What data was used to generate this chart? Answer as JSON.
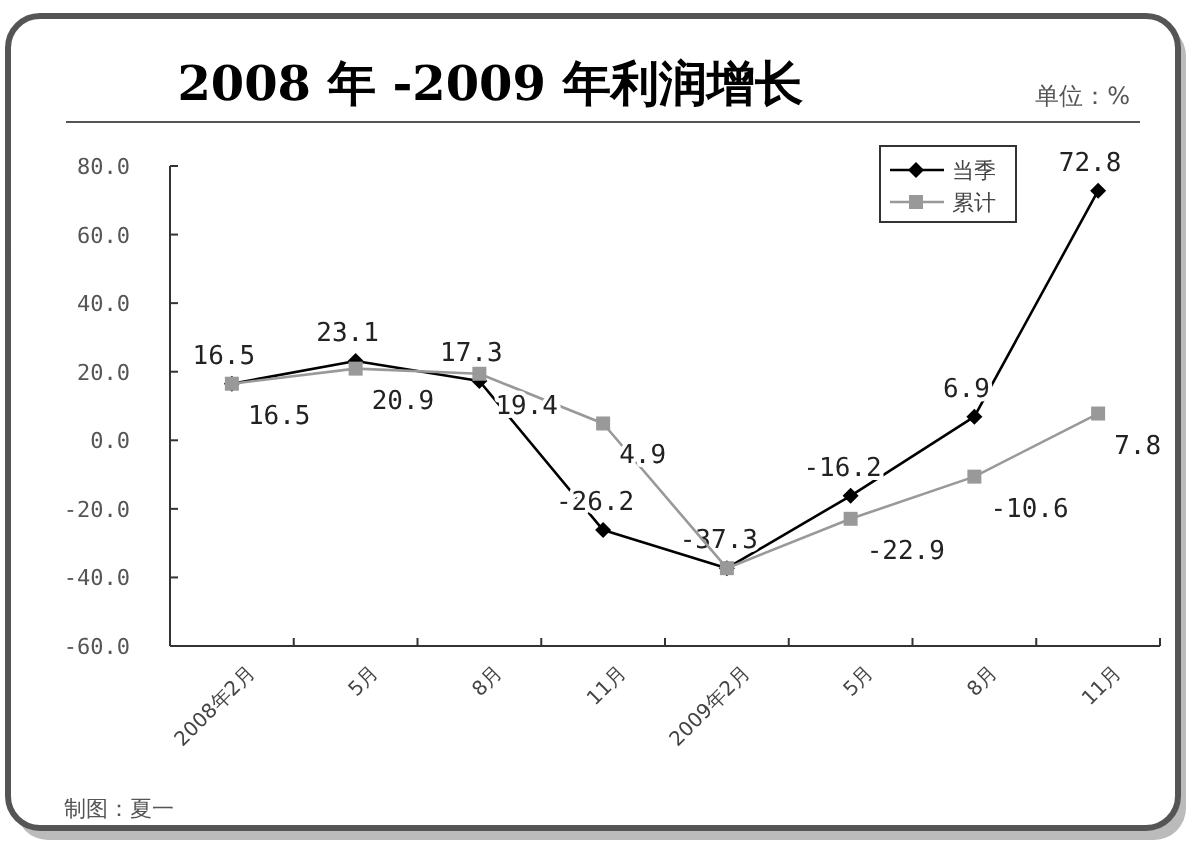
{
  "chart_data": {
    "type": "line",
    "title": "2008 年 -2009 年利润增长",
    "annotations": [
      "单位：%",
      "制图：夏一"
    ],
    "categories": [
      "2008年2月",
      "5月",
      "8月",
      "11月",
      "2009年2月",
      "5月",
      "8月",
      "11月"
    ],
    "series": [
      {
        "name": "当季",
        "color": "#000000",
        "marker": "diamond",
        "values": [
          16.5,
          23.1,
          17.3,
          -26.2,
          -37.3,
          -16.2,
          6.9,
          72.8
        ],
        "value_labels": [
          "16.5",
          "23.1",
          "17.3",
          "-26.2",
          "-37.3",
          "-16.2",
          "6.9",
          "72.8"
        ]
      },
      {
        "name": "累计",
        "color": "#999999",
        "marker": "square",
        "values": [
          16.5,
          20.9,
          19.4,
          4.9,
          -37.3,
          -22.9,
          -10.6,
          7.8
        ],
        "value_labels": [
          "16.5",
          "20.9",
          "19.4",
          "4.9",
          null,
          "-22.9",
          "-10.6",
          "7.8"
        ]
      }
    ],
    "ylim": [
      -60,
      80
    ],
    "yticks": [
      {
        "value": -60,
        "label": "-60.0"
      },
      {
        "value": -40,
        "label": "-40.0"
      },
      {
        "value": -20,
        "label": "-20.0"
      },
      {
        "value": 0,
        "label": "0.0"
      },
      {
        "value": 20,
        "label": "20.0"
      },
      {
        "value": 40,
        "label": "40.0"
      },
      {
        "value": 60,
        "label": "60.0"
      },
      {
        "value": 80,
        "label": "80.0"
      }
    ],
    "legend": "top right",
    "grid": false
  }
}
